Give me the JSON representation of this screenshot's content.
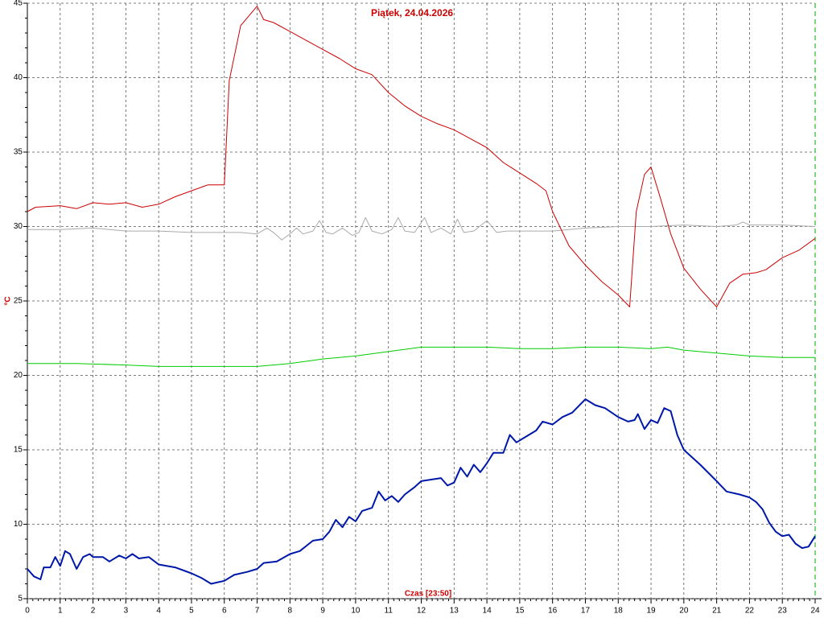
{
  "chart_data": {
    "type": "line",
    "title": "Piątek, 24.04.2026",
    "xlabel": "Czas [23:50]",
    "ylabel": "°C",
    "xlim": [
      0,
      24
    ],
    "xticks": [
      0,
      1,
      2,
      3,
      4,
      5,
      6,
      7,
      8,
      9,
      10,
      11,
      12,
      13,
      14,
      15,
      16,
      17,
      18,
      19,
      20,
      21,
      22,
      23,
      24
    ],
    "ylim": [
      5,
      45
    ],
    "yticks": [
      5,
      10,
      15,
      20,
      25,
      30,
      35,
      40,
      45
    ],
    "grid": true,
    "series": [
      {
        "color": "#aaaaaa",
        "width": 1,
        "x": [
          0,
          1,
          2,
          3,
          4,
          5,
          6,
          6.5,
          7,
          7.3,
          7.5,
          7.75,
          8,
          8.2,
          8.4,
          8.7,
          8.9,
          9.1,
          9.3,
          9.6,
          9.9,
          10.1,
          10.3,
          10.5,
          10.8,
          11.1,
          11.3,
          11.5,
          11.8,
          12.1,
          12.3,
          12.6,
          12.9,
          13.1,
          13.3,
          13.6,
          14,
          14.3,
          14.6,
          15,
          16,
          17,
          18,
          19,
          20,
          21,
          21.6,
          21.8,
          22,
          23,
          24
        ],
        "values": [
          29.8,
          29.8,
          29.9,
          29.7,
          29.7,
          29.6,
          29.6,
          29.6,
          29.5,
          29.9,
          29.6,
          29.1,
          29.5,
          29.9,
          29.5,
          29.7,
          30.4,
          29.6,
          29.5,
          29.9,
          29.4,
          29.6,
          30.6,
          29.7,
          29.5,
          29.8,
          30.6,
          29.7,
          29.6,
          30.6,
          29.6,
          29.9,
          29.5,
          30.5,
          29.6,
          29.7,
          30.4,
          29.6,
          29.7,
          29.7,
          29.7,
          29.9,
          30.0,
          30.0,
          30.1,
          30.0,
          30.1,
          30.3,
          30.1,
          30.1,
          30.0
        ]
      },
      {
        "color": "#00cc00",
        "width": 1,
        "x": [
          0,
          1.5,
          3,
          4,
          5,
          6,
          7,
          8,
          9,
          10,
          11,
          12,
          13,
          13.5,
          14,
          15,
          16,
          17,
          18,
          19,
          19.5,
          20,
          21,
          22,
          23,
          24
        ],
        "values": [
          20.8,
          20.8,
          20.7,
          20.6,
          20.6,
          20.6,
          20.6,
          20.8,
          21.1,
          21.3,
          21.6,
          21.9,
          21.9,
          21.9,
          21.9,
          21.8,
          21.8,
          21.9,
          21.9,
          21.8,
          21.9,
          21.7,
          21.5,
          21.3,
          21.2,
          21.2
        ]
      },
      {
        "color": "#cc0000",
        "width": 1,
        "x": [
          0,
          0.25,
          1,
          1.5,
          2,
          2.5,
          3,
          3.5,
          4,
          4.5,
          5,
          5.5,
          6,
          6.15,
          6.5,
          7,
          7.2,
          7.5,
          8,
          8.5,
          9,
          9.5,
          10,
          10.5,
          11,
          11.5,
          12,
          12.5,
          13,
          13.5,
          14,
          14.5,
          15,
          15.5,
          15.8,
          16,
          16.5,
          17,
          17.5,
          18,
          18.35,
          18.55,
          18.8,
          19,
          19.3,
          19.6,
          20,
          20.5,
          21,
          21.4,
          21.8,
          22.2,
          22.5,
          23,
          23.5,
          24
        ],
        "values": [
          31.0,
          31.3,
          31.4,
          31.2,
          31.6,
          31.5,
          31.6,
          31.3,
          31.5,
          32.0,
          32.4,
          32.8,
          32.8,
          39.8,
          43.5,
          44.8,
          43.9,
          43.7,
          43.1,
          42.5,
          41.9,
          41.3,
          40.6,
          40.2,
          39.0,
          38.1,
          37.4,
          36.9,
          36.5,
          35.9,
          35.3,
          34.3,
          33.6,
          32.9,
          32.4,
          31.0,
          28.7,
          27.4,
          26.3,
          25.4,
          24.6,
          31.0,
          33.5,
          34.0,
          31.8,
          29.5,
          27.2,
          25.8,
          24.6,
          26.2,
          26.8,
          26.9,
          27.1,
          27.9,
          28.4,
          29.2
        ]
      },
      {
        "color": "#0018a8",
        "width": 2,
        "x": [
          0,
          0.2,
          0.4,
          0.5,
          0.7,
          0.85,
          1,
          1.15,
          1.3,
          1.5,
          1.7,
          1.9,
          2,
          2.3,
          2.5,
          2.8,
          3,
          3.2,
          3.4,
          3.7,
          4,
          4.5,
          5,
          5.3,
          5.6,
          5.8,
          6,
          6.3,
          6.7,
          7,
          7.2,
          7.6,
          8,
          8.3,
          8.7,
          9,
          9.2,
          9.4,
          9.6,
          9.8,
          10,
          10.2,
          10.5,
          10.7,
          10.9,
          11.1,
          11.3,
          11.5,
          11.8,
          12,
          12.3,
          12.6,
          12.8,
          13,
          13.2,
          13.4,
          13.6,
          13.8,
          14,
          14.2,
          14.5,
          14.7,
          14.9,
          15.2,
          15.5,
          15.7,
          16,
          16.3,
          16.6,
          17,
          17.3,
          17.6,
          18,
          18.3,
          18.5,
          18.6,
          18.8,
          19,
          19.2,
          19.4,
          19.6,
          19.8,
          20,
          20.5,
          21,
          21.3,
          21.7,
          22,
          22.2,
          22.4,
          22.6,
          22.8,
          23,
          23.2,
          23.4,
          23.6,
          23.8,
          24
        ],
        "values": [
          7.0,
          6.5,
          6.3,
          7.1,
          7.1,
          7.8,
          7.2,
          8.2,
          8.0,
          7.0,
          7.8,
          8.0,
          7.8,
          7.8,
          7.5,
          7.9,
          7.7,
          8.0,
          7.7,
          7.8,
          7.3,
          7.1,
          6.7,
          6.4,
          6.0,
          6.1,
          6.2,
          6.6,
          6.8,
          7.0,
          7.4,
          7.5,
          8.0,
          8.2,
          8.9,
          9.0,
          9.5,
          10.3,
          9.8,
          10.5,
          10.2,
          10.9,
          11.1,
          12.2,
          11.6,
          11.9,
          11.5,
          12.0,
          12.5,
          12.9,
          13.0,
          13.1,
          12.6,
          12.8,
          13.8,
          13.2,
          14.0,
          13.5,
          14.1,
          14.8,
          14.8,
          16.0,
          15.5,
          15.9,
          16.3,
          16.9,
          16.7,
          17.2,
          17.5,
          18.4,
          18.0,
          17.8,
          17.2,
          16.9,
          17.0,
          17.4,
          16.4,
          17.0,
          16.8,
          17.8,
          17.6,
          16.0,
          15.0,
          14.0,
          12.9,
          12.2,
          12.0,
          11.8,
          11.5,
          11.0,
          10.1,
          9.5,
          9.2,
          9.3,
          8.7,
          8.4,
          8.5,
          9.2
        ]
      }
    ]
  }
}
